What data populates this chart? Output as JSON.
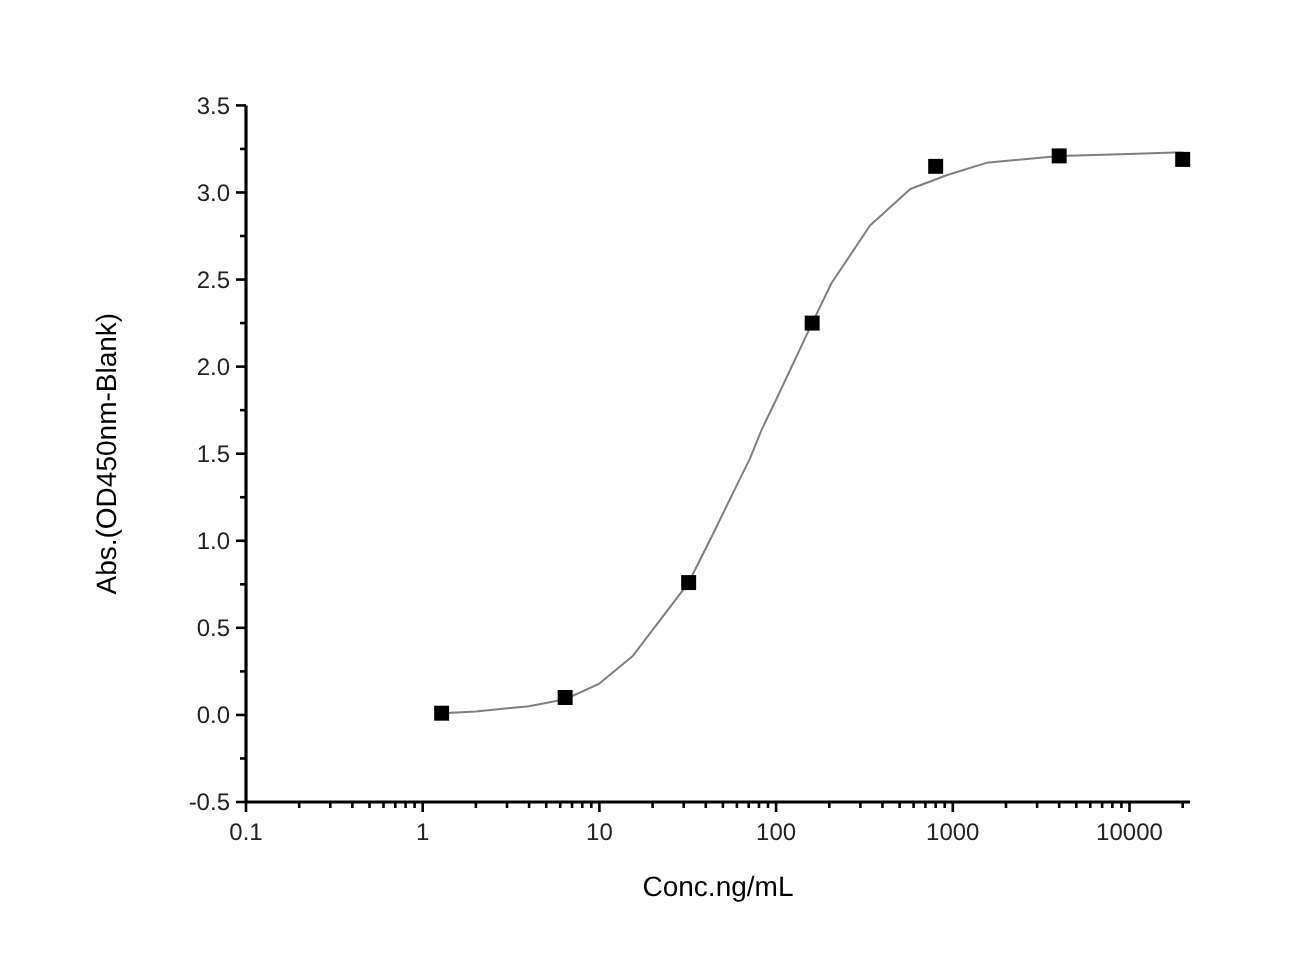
{
  "chart_data": {
    "type": "scatter",
    "xlabel": "Conc.ng/mL",
    "ylabel": "Abs.(OD450nm-Blank)",
    "log": "x",
    "xlim": [
      0.1,
      22000
    ],
    "ylim": [
      -0.5,
      3.5
    ],
    "xticks": [
      0.1,
      {
        "value": 0.2,
        "label": null
      },
      {
        "value": 0.3,
        "label": null
      },
      {
        "value": 0.4,
        "label": null
      },
      {
        "value": 0.5,
        "label": null
      },
      {
        "value": 0.6,
        "label": null
      },
      {
        "value": 0.7,
        "label": null
      },
      {
        "value": 0.8,
        "label": null
      },
      {
        "value": 0.9,
        "label": null
      },
      1,
      {
        "value": 2,
        "label": null
      },
      {
        "value": 3,
        "label": null
      },
      {
        "value": 4,
        "label": null
      },
      {
        "value": 5,
        "label": null
      },
      {
        "value": 6,
        "label": null
      },
      {
        "value": 7,
        "label": null
      },
      {
        "value": 8,
        "label": null
      },
      {
        "value": 9,
        "label": null
      },
      10,
      {
        "value": 20,
        "label": null
      },
      {
        "value": 30,
        "label": null
      },
      {
        "value": 40,
        "label": null
      },
      {
        "value": 50,
        "label": null
      },
      {
        "value": 60,
        "label": null
      },
      {
        "value": 70,
        "label": null
      },
      {
        "value": 80,
        "label": null
      },
      {
        "value": 90,
        "label": null
      },
      100,
      {
        "value": 200,
        "label": null
      },
      {
        "value": 300,
        "label": null
      },
      {
        "value": 400,
        "label": null
      },
      {
        "value": 500,
        "label": null
      },
      {
        "value": 600,
        "label": null
      },
      {
        "value": 700,
        "label": null
      },
      {
        "value": 800,
        "label": null
      },
      {
        "value": 900,
        "label": null
      },
      1000,
      {
        "value": 2000,
        "label": null
      },
      {
        "value": 3000,
        "label": null
      },
      {
        "value": 4000,
        "label": null
      },
      {
        "value": 5000,
        "label": null
      },
      {
        "value": 6000,
        "label": null
      },
      {
        "value": 7000,
        "label": null
      },
      {
        "value": 8000,
        "label": null
      },
      {
        "value": 9000,
        "label": null
      },
      10000,
      {
        "value": 20000,
        "label": null
      }
    ],
    "yticks": [
      -0.5,
      {
        "value": -0.25,
        "label": null
      },
      {
        "value": 0,
        "label": "0.0"
      },
      {
        "value": 0.25,
        "label": null
      },
      0.5,
      {
        "value": 0.75,
        "label": null
      },
      {
        "value": 1,
        "label": "1.0"
      },
      {
        "value": 1.25,
        "label": null
      },
      1.5,
      {
        "value": 1.75,
        "label": null
      },
      {
        "value": 2,
        "label": "2.0"
      },
      {
        "value": 2.25,
        "label": null
      },
      2.5,
      {
        "value": 2.75,
        "label": null
      },
      {
        "value": 3,
        "label": "3.0"
      },
      {
        "value": 3.25,
        "label": null
      },
      3.5
    ],
    "series": [
      {
        "type": "line",
        "color": "#7f7f7f",
        "marker": "none",
        "line_style": "solid",
        "x": [
          1.28,
          2,
          4,
          6.4,
          10,
          15.5,
          32,
          44,
          62,
          71,
          83,
          100,
          160,
          206,
          340,
          575,
          930,
          1550,
          4000,
          8900,
          17900,
          20000
        ],
        "values": [
          0.01,
          0.02,
          0.05,
          0.09,
          0.18,
          0.34,
          0.76,
          1.04,
          1.35,
          1.47,
          1.64,
          1.81,
          2.25,
          2.48,
          2.81,
          3.02,
          3.1,
          3.17,
          3.21,
          3.22,
          3.23,
          3.23
        ]
      },
      {
        "color": "#000000",
        "marker": "square",
        "x": [
          1.28,
          6.4,
          32,
          160,
          800,
          4000,
          20000
        ],
        "values": [
          0.01,
          0.1,
          0.76,
          2.25,
          3.15,
          3.21,
          3.19
        ]
      }
    ]
  }
}
